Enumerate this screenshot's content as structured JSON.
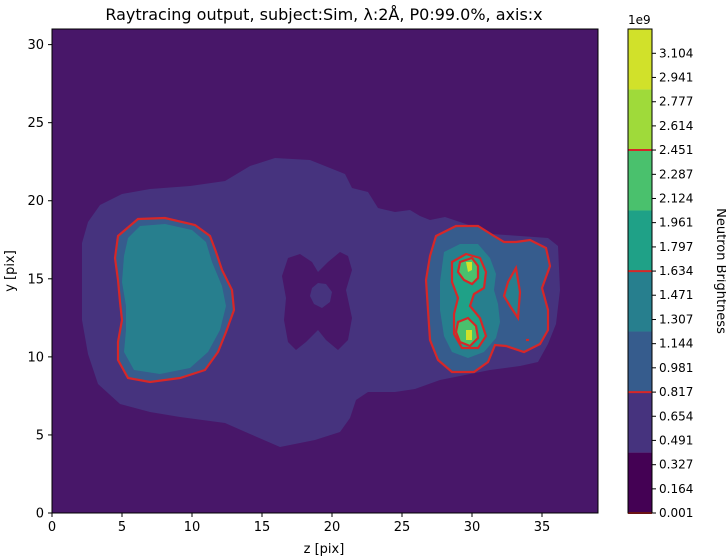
{
  "chart_data": {
    "type": "contour",
    "title": "Raytracing output, subject:Sim, λ:2Å, P0:99.0%, axis:x",
    "xlabel": "z [pix]",
    "ylabel": "y [pix]",
    "xlim": [
      0,
      39
    ],
    "ylim": [
      0,
      31
    ],
    "xticks": [
      "0",
      "5",
      "10",
      "15",
      "20",
      "25",
      "30",
      "35"
    ],
    "yticks": [
      "0",
      "5",
      "10",
      "15",
      "20",
      "25",
      "30"
    ],
    "colorbar": {
      "label": "Neutron Brightness",
      "exponent": "1e9",
      "ticks": [
        "0.001",
        "0.164",
        "0.327",
        "0.491",
        "0.654",
        "0.817",
        "0.981",
        "1.144",
        "1.307",
        "1.471",
        "1.634",
        "1.797",
        "1.961",
        "2.124",
        "2.287",
        "2.451",
        "2.614",
        "2.777",
        "2.941",
        "3.104"
      ],
      "level_colors": [
        "#440154",
        "#46337e",
        "#365c8d",
        "#277f8e",
        "#1fa187",
        "#4ac16d",
        "#9fda3a",
        "#d1e12a"
      ],
      "line_level_ticks": [
        "0.001",
        "0.817",
        "1.634",
        "2.451"
      ],
      "line_color": "#d62728"
    },
    "background_level_color": "#481769"
  }
}
